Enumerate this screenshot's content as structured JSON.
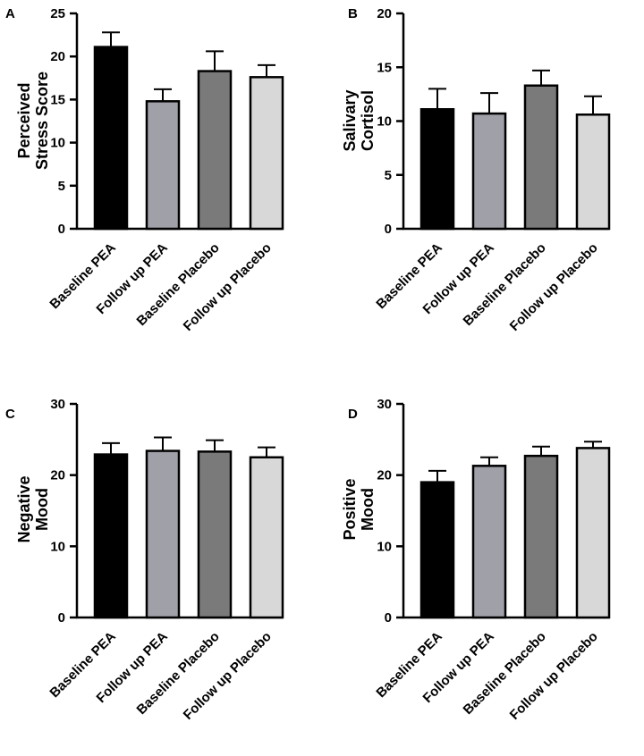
{
  "chart_data": [
    {
      "panel": "A",
      "type": "bar",
      "ylabel_lines": [
        "Perceived",
        "Stress Score"
      ],
      "ylim": [
        0,
        25
      ],
      "yticks": [
        0,
        5,
        10,
        15,
        20,
        25
      ],
      "categories": [
        "Baseline PEA",
        "Follow up PEA",
        "Baseline Placebo",
        "Follow up Placebo"
      ],
      "values": [
        21.1,
        14.8,
        18.3,
        17.6
      ],
      "errors": [
        1.7,
        1.4,
        2.3,
        1.4
      ],
      "colors": [
        "#000000",
        "#a0a0a8",
        "#7a7a7a",
        "#d8d8d8"
      ]
    },
    {
      "panel": "B",
      "type": "bar",
      "ylabel_lines": [
        "Salivary",
        "Cortisol"
      ],
      "ylim": [
        0,
        20
      ],
      "yticks": [
        0,
        5,
        10,
        15,
        20
      ],
      "categories": [
        "Baseline PEA",
        "Follow up PEA",
        "Baseline Placebo",
        "Follow up Placebo"
      ],
      "values": [
        11.1,
        10.7,
        13.3,
        10.6
      ],
      "errors": [
        1.9,
        1.9,
        1.4,
        1.7
      ],
      "colors": [
        "#000000",
        "#a0a0a8",
        "#7a7a7a",
        "#d8d8d8"
      ]
    },
    {
      "panel": "C",
      "type": "bar",
      "ylabel_lines": [
        "Negative",
        "Mood"
      ],
      "ylim": [
        0,
        30
      ],
      "yticks": [
        0,
        10,
        20,
        30
      ],
      "categories": [
        "Baseline PEA",
        "Follow up PEA",
        "Baseline Placebo",
        "Follow up Placebo"
      ],
      "values": [
        22.9,
        23.4,
        23.3,
        22.5
      ],
      "errors": [
        1.6,
        1.9,
        1.6,
        1.4
      ],
      "colors": [
        "#000000",
        "#a0a0a8",
        "#7a7a7a",
        "#d8d8d8"
      ]
    },
    {
      "panel": "D",
      "type": "bar",
      "ylabel_lines": [
        "Positive",
        "Mood"
      ],
      "ylim": [
        0,
        30
      ],
      "yticks": [
        0,
        10,
        20,
        30
      ],
      "categories": [
        "Baseline PEA",
        "Follow up PEA",
        "Baseline Placebo",
        "Follow up Placebo"
      ],
      "values": [
        19.0,
        21.3,
        22.7,
        23.8
      ],
      "errors": [
        1.6,
        1.2,
        1.3,
        0.9
      ],
      "colors": [
        "#000000",
        "#a0a0a8",
        "#7a7a7a",
        "#d8d8d8"
      ]
    }
  ]
}
